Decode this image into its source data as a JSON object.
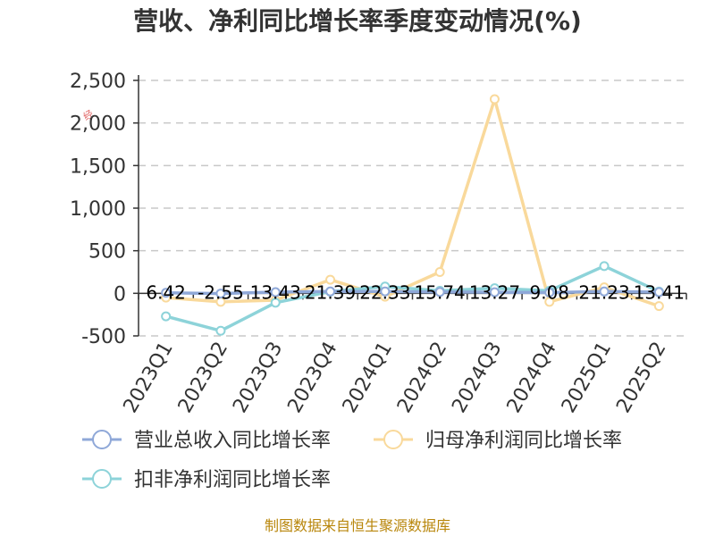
{
  "chart_data": {
    "type": "line",
    "title": "营收、净利同比增长率季度变动情况(%)",
    "categories": [
      "2023Q1",
      "2023Q2",
      "2023Q3",
      "2023Q4",
      "2024Q1",
      "2024Q2",
      "2024Q3",
      "2024Q4",
      "2025Q1",
      "2025Q2"
    ],
    "ylim": [
      -500,
      2500
    ],
    "yticks": [
      -500,
      0,
      500,
      1000,
      1500,
      2000,
      2500
    ],
    "ytick_labels": [
      "-500",
      "0",
      "500",
      "1,000",
      "1,500",
      "2,000",
      "2,500"
    ],
    "grid": "horizontal-dashed",
    "legend_position": "bottom",
    "series": [
      {
        "name": "营业总收入同比增长率",
        "color": "#8fa8d8",
        "values": [
          6.42,
          -2.55,
          13.43,
          21.39,
          22.33,
          15.74,
          13.27,
          9.08,
          21.23,
          13.41
        ],
        "labels": [
          "6.42",
          "-2.55",
          "13.43",
          "21.39",
          "22.33",
          "15.74",
          "13.27",
          "9.08",
          "21.23",
          "13.41"
        ]
      },
      {
        "name": "归母净利润同比增长率",
        "color": "#f9d99b",
        "values": [
          -50,
          -100,
          -80,
          160,
          -40,
          250,
          2280,
          -100,
          70,
          -150
        ]
      },
      {
        "name": "扣非净利润同比增长率",
        "color": "#8dd3d9",
        "values": [
          -270,
          -440,
          -110,
          20,
          80,
          30,
          60,
          30,
          320,
          20
        ]
      }
    ],
    "source": "制图数据来自恒生聚源数据库",
    "watermark": "经"
  }
}
